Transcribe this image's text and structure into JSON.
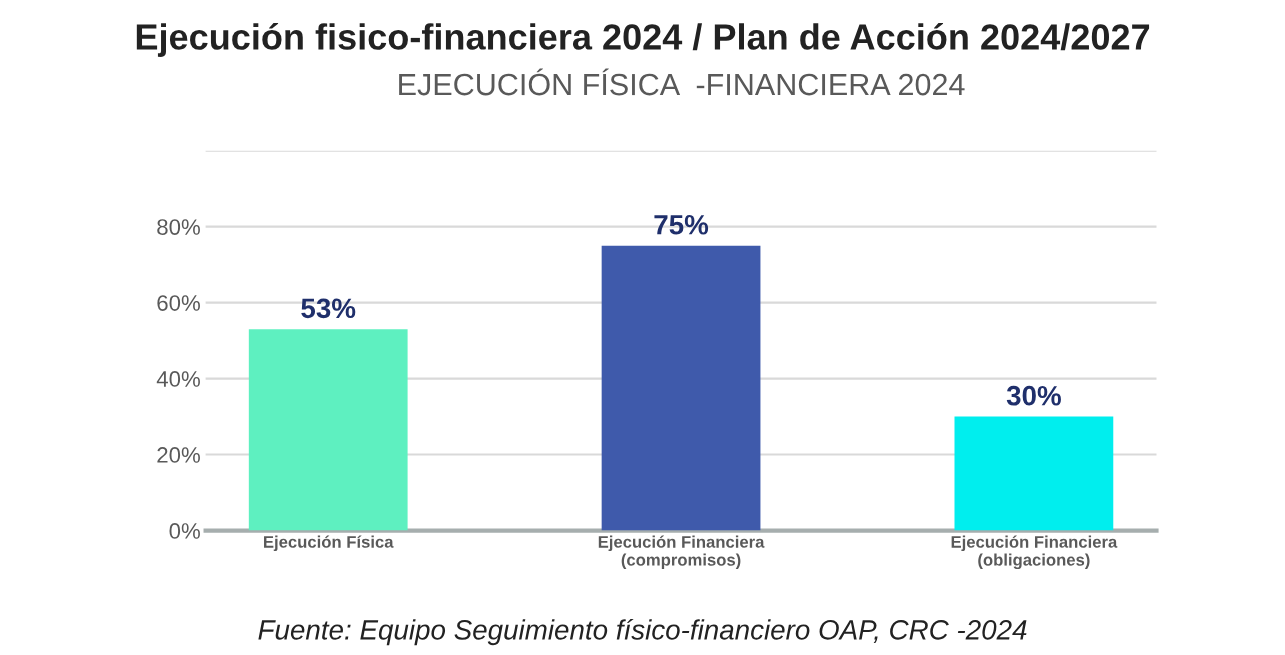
{
  "chart_data": {
    "type": "bar",
    "title": "Ejecución fisico-financiera 2024 / Plan de Acción 2024/2027",
    "subtitle": "EJECUCIÓN FÍSICA  -FINANCIERA 2024",
    "categories": [
      "Ejecución Física",
      "Ejecución Financiera\n(compromisos)",
      "Ejecución Financiera\n(obligaciones)"
    ],
    "values": [
      53,
      75,
      30
    ],
    "colors": [
      "#5ef0c0",
      "#3f5aab",
      "#00eeee"
    ],
    "value_labels": [
      "53%",
      "75%",
      "30%"
    ],
    "ylim": [
      0,
      100
    ],
    "yticks": [
      {
        "value": 0,
        "label": "0%"
      },
      {
        "value": 20,
        "label": "20%"
      },
      {
        "value": 40,
        "label": "40%"
      },
      {
        "value": 60,
        "label": "60%"
      },
      {
        "value": 80,
        "label": "80%"
      },
      {
        "value": 100,
        "label": null
      }
    ],
    "grid": "y",
    "annotations": [
      "Fuente: Equipo Seguimiento físico-financiero OAP, CRC -2024"
    ]
  }
}
